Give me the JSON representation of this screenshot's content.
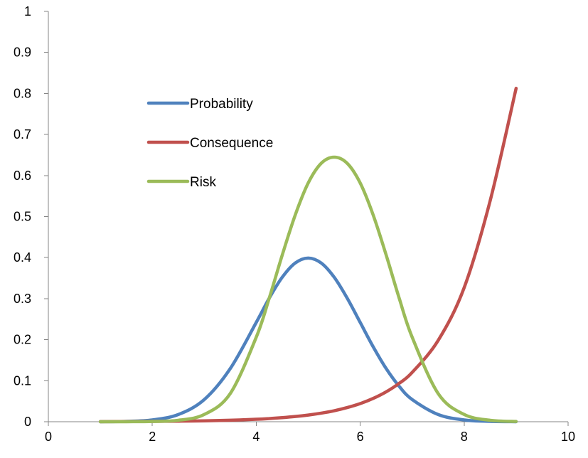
{
  "chart_data": {
    "type": "line",
    "title": "",
    "xlabel": "",
    "ylabel": "",
    "xlim": [
      0,
      10
    ],
    "ylim": [
      0,
      1
    ],
    "x_ticks": [
      "0",
      "2",
      "4",
      "6",
      "8",
      "10"
    ],
    "y_ticks": [
      "0",
      "0.1",
      "0.2",
      "0.3",
      "0.4",
      "0.5",
      "0.6",
      "0.7",
      "0.8",
      "0.9",
      "1"
    ],
    "grid": false,
    "legend_position": "upper-left inside plot",
    "x": [
      1,
      1.5,
      2,
      2.5,
      3,
      3.5,
      4,
      4.25,
      4.5,
      4.75,
      5,
      5.25,
      5.5,
      5.75,
      6,
      6.25,
      6.5,
      6.75,
      7,
      7.5,
      8,
      8.5,
      9
    ],
    "series": [
      {
        "name": "Probability",
        "color": "#4F81BD",
        "values": [
          0.0001,
          0.0009,
          0.0044,
          0.0175,
          0.054,
          0.1295,
          0.242,
          0.3011,
          0.3521,
          0.3867,
          0.3989,
          0.3867,
          0.3521,
          0.3011,
          0.242,
          0.1826,
          0.1295,
          0.0863,
          0.054,
          0.0175,
          0.0044,
          0.0009,
          0.0001
        ]
      },
      {
        "name": "Consequence",
        "color": "#C0504D",
        "values": [
          0.0003,
          0.0005,
          0.0008,
          0.0014,
          0.0022,
          0.0037,
          0.006,
          0.0077,
          0.0099,
          0.0127,
          0.0163,
          0.0209,
          0.0268,
          0.0345,
          0.0442,
          0.0568,
          0.0729,
          0.0936,
          0.1202,
          0.1981,
          0.3266,
          0.5383,
          0.8125
        ]
      },
      {
        "name": "Risk",
        "color": "#9BBB59",
        "values": [
          0.0,
          0.0001,
          0.0006,
          0.0036,
          0.0177,
          0.0687,
          0.206,
          0.3012,
          0.4061,
          0.5037,
          0.5818,
          0.6298,
          0.6448,
          0.6298,
          0.5818,
          0.5037,
          0.4061,
          0.3012,
          0.206,
          0.0687,
          0.0177,
          0.0036,
          0.0006
        ]
      }
    ]
  }
}
